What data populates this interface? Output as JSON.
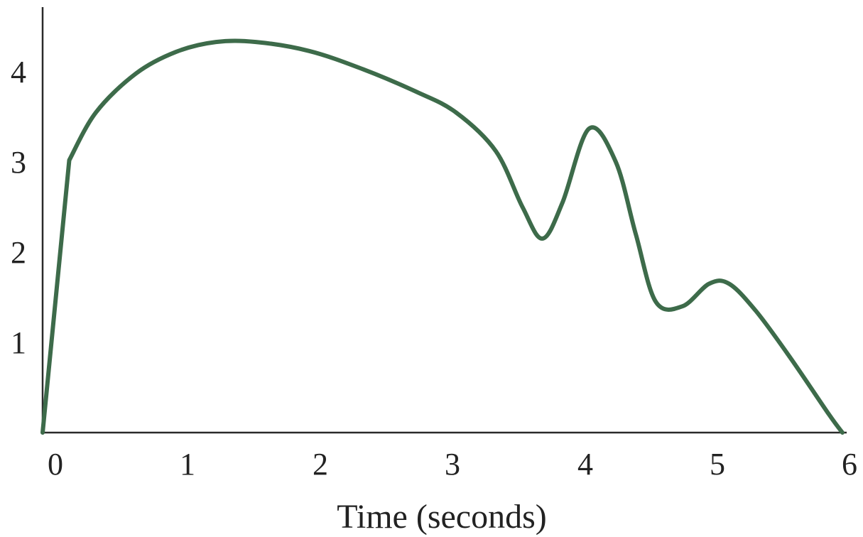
{
  "chart_data": {
    "type": "line",
    "title": "",
    "xlabel": "Time (seconds)",
    "ylabel": "",
    "xlim": [
      0,
      6
    ],
    "ylim": [
      0,
      4.8
    ],
    "x_ticks": [
      0,
      1,
      2,
      3,
      4,
      5,
      6
    ],
    "y_ticks": [
      1,
      2,
      3,
      4
    ],
    "grid": false,
    "legend": "none",
    "colors": {
      "line": "#3d6b4a",
      "axis": "#2a2a2a",
      "text": "#222222"
    },
    "series": [
      {
        "x": [
          0.0,
          0.2,
          0.4,
          0.7,
          1.0,
          1.3,
          1.6,
          2.0,
          2.4,
          2.8,
          3.1,
          3.4,
          3.6,
          3.75,
          3.9,
          4.1,
          4.3,
          4.45,
          4.6,
          4.8,
          5.0,
          5.15,
          5.35,
          5.6,
          5.9,
          6.0
        ],
        "y": [
          0.0,
          3.02,
          3.55,
          3.98,
          4.22,
          4.33,
          4.33,
          4.23,
          4.03,
          3.78,
          3.55,
          3.12,
          2.5,
          2.15,
          2.55,
          3.37,
          3.0,
          2.2,
          1.45,
          1.4,
          1.65,
          1.65,
          1.35,
          0.85,
          0.2,
          0.0
        ]
      }
    ]
  }
}
